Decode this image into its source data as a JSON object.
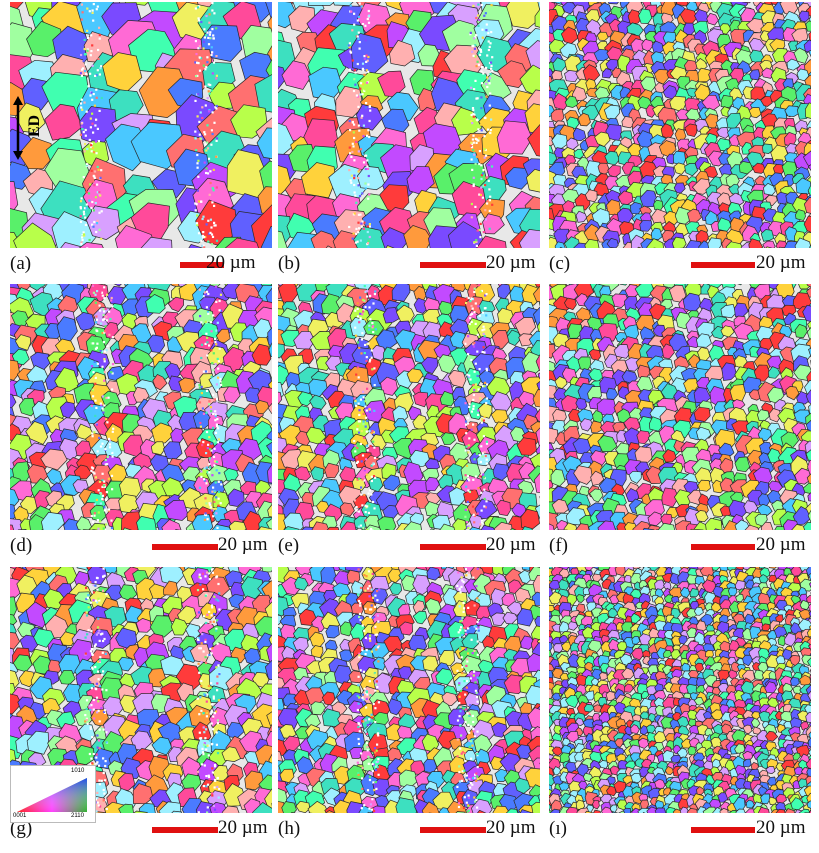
{
  "figure": {
    "panels": [
      {
        "id": "a",
        "label": "(a)",
        "scale": "20 µm",
        "grain": 30,
        "seed": 11,
        "stripe": true
      },
      {
        "id": "b",
        "label": "(b)",
        "scale": "20 µm",
        "grain": 24,
        "seed": 23,
        "stripe": true
      },
      {
        "id": "c",
        "label": "(c)",
        "scale": "20 µm",
        "grain": 11,
        "seed": 37,
        "stripe": false
      },
      {
        "id": "d",
        "label": "(d)",
        "scale": "20 µm",
        "grain": 15,
        "seed": 41,
        "stripe": true
      },
      {
        "id": "e",
        "label": "(e)",
        "scale": "20 µm",
        "grain": 14,
        "seed": 53,
        "stripe": true
      },
      {
        "id": "f",
        "label": "(f)",
        "scale": "20 µm",
        "grain": 12,
        "seed": 67,
        "stripe": false
      },
      {
        "id": "g",
        "label": "(g)",
        "scale": "20 µm",
        "grain": 15,
        "seed": 71,
        "stripe": true
      },
      {
        "id": "h",
        "label": "(h)",
        "scale": "20 µm",
        "grain": 13,
        "seed": 83,
        "stripe": true
      },
      {
        "id": "i",
        "label": "(ı)",
        "scale": "20 µm",
        "grain": 8,
        "seed": 97,
        "stripe": false
      }
    ],
    "direction_marker": "ED",
    "legend": {
      "top": "1010",
      "left": "0001",
      "right": "2110"
    },
    "colors": {
      "scale_bar": "#e01010",
      "boundary": "#2a2a2a"
    }
  }
}
